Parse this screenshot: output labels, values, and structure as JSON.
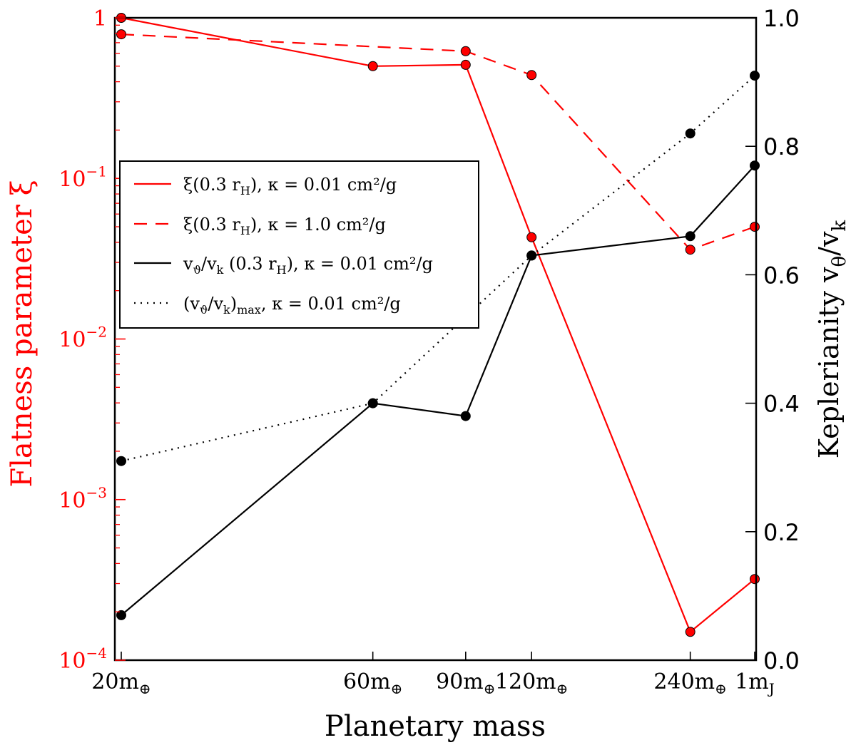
{
  "colors": {
    "left_axis": "#ff0000",
    "right_axis": "#000000",
    "red": "#ff0000",
    "black": "#000000"
  },
  "chart_data": {
    "type": "line",
    "xlabel": "Planetary mass",
    "ylabel_left": "Flatness parameter ξ",
    "ylabel_right": "Keplerianity v",
    "ylabel_right_sub": "θ",
    "ylabel_right_mid": "/v",
    "ylabel_right_sub2": "k",
    "x_categories": [
      {
        "main": "20m",
        "sub": "⊕",
        "pos": 20
      },
      {
        "main": "60m",
        "sub": "⊕",
        "pos": 60
      },
      {
        "main": "90m",
        "sub": "⊕",
        "pos": 90
      },
      {
        "main": "120m",
        "sub": "⊕",
        "pos": 120
      },
      {
        "main": "240m",
        "sub": "⊕",
        "pos": 240
      },
      {
        "main": "1m",
        "sub": "J",
        "pos": 318
      }
    ],
    "x_scale": "log",
    "xlim": [
      20,
      318
    ],
    "y_left": {
      "scale": "log",
      "lim": [
        0.0001,
        1
      ],
      "ticks": [
        {
          "value": 1,
          "base": "1",
          "exp": ""
        },
        {
          "value": 0.1,
          "base": "10",
          "exp": "−1"
        },
        {
          "value": 0.01,
          "base": "10",
          "exp": "−2"
        },
        {
          "value": 0.001,
          "base": "10",
          "exp": "−3"
        },
        {
          "value": 0.0001,
          "base": "10",
          "exp": "−4"
        }
      ]
    },
    "y_right": {
      "scale": "linear",
      "lim": [
        0.0,
        1.0
      ],
      "ticks": [
        "0.0",
        "0.2",
        "0.4",
        "0.6",
        "0.8",
        "1.0"
      ]
    },
    "series": [
      {
        "axis": "left",
        "color": "#ff0000",
        "style": "solid",
        "legend_main": "ξ(0.3 r",
        "legend_sub": "H",
        "legend_rest": "), κ = 0.01 cm²/g",
        "x": [
          20,
          60,
          90,
          120,
          240,
          318
        ],
        "y": [
          1.0,
          0.5,
          0.51,
          0.043,
          0.00015,
          0.00032
        ]
      },
      {
        "axis": "left",
        "color": "#ff0000",
        "style": "dashed",
        "legend_main": "ξ(0.3 r",
        "legend_sub": "H",
        "legend_rest": "), κ = 1.0 cm²/g",
        "x": [
          20,
          90,
          120,
          240,
          318
        ],
        "y": [
          0.79,
          0.62,
          0.44,
          0.036,
          0.05
        ]
      },
      {
        "axis": "right",
        "color": "#000000",
        "style": "solid",
        "legend_main": "v",
        "legend_sub": "ϑ",
        "legend_rest": "/v",
        "legend_sub2": "k",
        "legend_rest2": " (0.3 r",
        "legend_sub3": "H",
        "legend_rest3": "), κ = 0.01 cm²/g",
        "x": [
          20,
          60,
          90,
          120,
          240,
          318
        ],
        "y": [
          0.07,
          0.4,
          0.38,
          0.63,
          0.66,
          0.77
        ]
      },
      {
        "axis": "right",
        "color": "#000000",
        "style": "dotted",
        "legend_main": "(v",
        "legend_sub": "ϑ",
        "legend_rest": "/v",
        "legend_sub2": "k",
        "legend_rest2": ")",
        "legend_sub3": "max",
        "legend_rest3": ", κ = 0.01 cm²/g",
        "x": [
          20,
          60,
          120,
          240,
          318
        ],
        "y": [
          0.31,
          0.4,
          0.63,
          0.82,
          0.91
        ]
      }
    ],
    "legend_placement": "center-left"
  }
}
